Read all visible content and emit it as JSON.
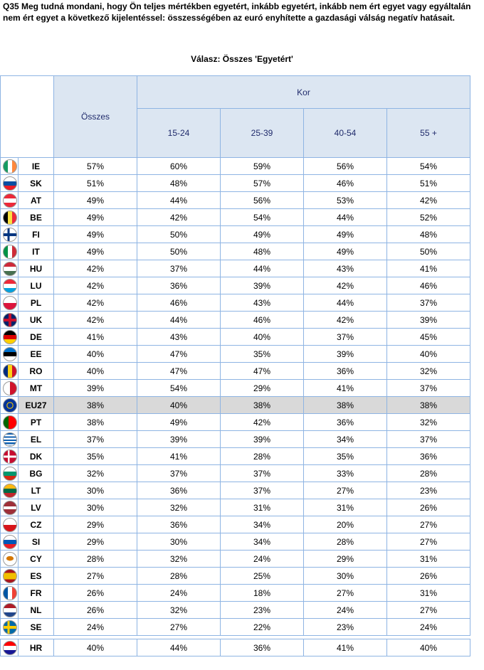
{
  "question": "Q35 Meg tudná mondani, hogy Ön teljes mértékben egyetért, inkább egyetért, inkább nem ért egyet vagy egyáltalán nem ért egyet a következő kijelentéssel: összességében az euró enyhítette a gazdasági válság negatív hatásait.",
  "subtitle": "Válasz: Összes 'Egyetért'",
  "header": {
    "total": "Összes",
    "group": "Kor",
    "ages": [
      "15-24",
      "25-39",
      "40-54",
      "55 +"
    ]
  },
  "rows": [
    {
      "code": "IE",
      "flag": "ireland-flag-icon",
      "values": [
        "57%",
        "60%",
        "59%",
        "56%",
        "54%"
      ]
    },
    {
      "code": "SK",
      "flag": "slovakia-flag-icon",
      "values": [
        "51%",
        "48%",
        "57%",
        "46%",
        "51%"
      ]
    },
    {
      "code": "AT",
      "flag": "austria-flag-icon",
      "values": [
        "49%",
        "44%",
        "56%",
        "53%",
        "42%"
      ]
    },
    {
      "code": "BE",
      "flag": "belgium-flag-icon",
      "values": [
        "49%",
        "42%",
        "54%",
        "44%",
        "52%"
      ]
    },
    {
      "code": "FI",
      "flag": "finland-flag-icon",
      "values": [
        "49%",
        "50%",
        "49%",
        "49%",
        "48%"
      ]
    },
    {
      "code": "IT",
      "flag": "italy-flag-icon",
      "values": [
        "49%",
        "50%",
        "48%",
        "49%",
        "50%"
      ]
    },
    {
      "code": "HU",
      "flag": "hungary-flag-icon",
      "values": [
        "42%",
        "37%",
        "44%",
        "43%",
        "41%"
      ]
    },
    {
      "code": "LU",
      "flag": "luxembourg-flag-icon",
      "values": [
        "42%",
        "36%",
        "39%",
        "42%",
        "46%"
      ]
    },
    {
      "code": "PL",
      "flag": "poland-flag-icon",
      "values": [
        "42%",
        "46%",
        "43%",
        "44%",
        "37%"
      ]
    },
    {
      "code": "UK",
      "flag": "uk-flag-icon",
      "values": [
        "42%",
        "44%",
        "46%",
        "42%",
        "39%"
      ]
    },
    {
      "code": "DE",
      "flag": "germany-flag-icon",
      "values": [
        "41%",
        "43%",
        "40%",
        "37%",
        "45%"
      ]
    },
    {
      "code": "EE",
      "flag": "estonia-flag-icon",
      "values": [
        "40%",
        "47%",
        "35%",
        "39%",
        "40%"
      ]
    },
    {
      "code": "RO",
      "flag": "romania-flag-icon",
      "values": [
        "40%",
        "47%",
        "47%",
        "36%",
        "32%"
      ]
    },
    {
      "code": "MT",
      "flag": "malta-flag-icon",
      "values": [
        "39%",
        "54%",
        "29%",
        "41%",
        "37%"
      ]
    },
    {
      "code": "EU27",
      "flag": "eu-flag-icon",
      "highlight": true,
      "values": [
        "38%",
        "40%",
        "38%",
        "38%",
        "38%"
      ]
    },
    {
      "code": "PT",
      "flag": "portugal-flag-icon",
      "values": [
        "38%",
        "49%",
        "42%",
        "36%",
        "32%"
      ]
    },
    {
      "code": "EL",
      "flag": "greece-flag-icon",
      "values": [
        "37%",
        "39%",
        "39%",
        "34%",
        "37%"
      ]
    },
    {
      "code": "DK",
      "flag": "denmark-flag-icon",
      "values": [
        "35%",
        "41%",
        "28%",
        "35%",
        "36%"
      ]
    },
    {
      "code": "BG",
      "flag": "bulgaria-flag-icon",
      "values": [
        "32%",
        "37%",
        "37%",
        "33%",
        "28%"
      ]
    },
    {
      "code": "LT",
      "flag": "lithuania-flag-icon",
      "values": [
        "30%",
        "36%",
        "37%",
        "27%",
        "23%"
      ]
    },
    {
      "code": "LV",
      "flag": "latvia-flag-icon",
      "values": [
        "30%",
        "32%",
        "31%",
        "31%",
        "26%"
      ]
    },
    {
      "code": "CZ",
      "flag": "czech-flag-icon",
      "values": [
        "29%",
        "36%",
        "34%",
        "20%",
        "27%"
      ]
    },
    {
      "code": "SI",
      "flag": "slovenia-flag-icon",
      "values": [
        "29%",
        "30%",
        "34%",
        "28%",
        "27%"
      ]
    },
    {
      "code": "CY",
      "flag": "cyprus-flag-icon",
      "values": [
        "28%",
        "32%",
        "24%",
        "29%",
        "31%"
      ]
    },
    {
      "code": "ES",
      "flag": "spain-flag-icon",
      "values": [
        "27%",
        "28%",
        "25%",
        "30%",
        "26%"
      ]
    },
    {
      "code": "FR",
      "flag": "france-flag-icon",
      "values": [
        "26%",
        "24%",
        "18%",
        "27%",
        "31%"
      ]
    },
    {
      "code": "NL",
      "flag": "netherlands-flag-icon",
      "values": [
        "26%",
        "32%",
        "23%",
        "24%",
        "27%"
      ]
    },
    {
      "code": "SE",
      "flag": "sweden-flag-icon",
      "values": [
        "24%",
        "27%",
        "22%",
        "23%",
        "24%"
      ]
    }
  ],
  "extra_row": {
    "code": "HR",
    "flag": "croatia-flag-icon",
    "values": [
      "40%",
      "44%",
      "36%",
      "41%",
      "40%"
    ]
  }
}
